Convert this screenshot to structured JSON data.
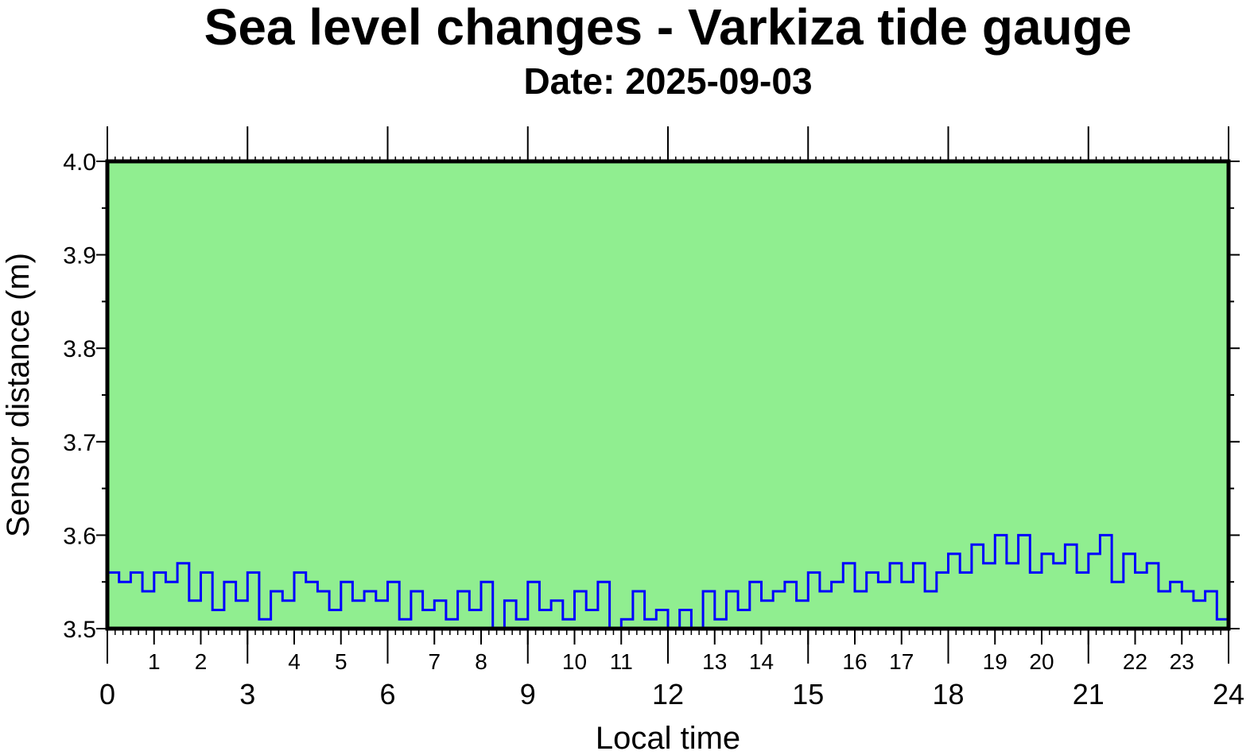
{
  "chart_data": {
    "type": "line",
    "title": "Sea level changes - Varkiza tide gauge",
    "subtitle": "Date: 2025-09-03",
    "xlabel": "Local time",
    "ylabel": "Sensor distance (m)",
    "xlim": [
      0,
      24
    ],
    "ylim": [
      3.5,
      4.0
    ],
    "y_ticks": [
      "3.5",
      "3.6",
      "3.7",
      "3.8",
      "3.9",
      "4.0"
    ],
    "x_major_ticks": [
      "0",
      "3",
      "6",
      "9",
      "12",
      "15",
      "18",
      "21",
      "24"
    ],
    "x_hour_ticks": [
      "1",
      "2",
      "4",
      "5",
      "7",
      "8",
      "10",
      "11",
      "13",
      "14",
      "16",
      "17",
      "19",
      "20",
      "22",
      "23"
    ],
    "background_color": "#90ee90",
    "line_color": "#0000ff",
    "series": [
      {
        "name": "Sensor distance",
        "x_step_hours": 0.25,
        "values": [
          3.56,
          3.55,
          3.56,
          3.54,
          3.56,
          3.55,
          3.57,
          3.53,
          3.56,
          3.52,
          3.55,
          3.53,
          3.56,
          3.51,
          3.54,
          3.53,
          3.56,
          3.55,
          3.54,
          3.52,
          3.55,
          3.53,
          3.54,
          3.53,
          3.55,
          3.51,
          3.54,
          3.52,
          3.53,
          3.51,
          3.54,
          3.52,
          3.55,
          3.5,
          3.53,
          3.51,
          3.55,
          3.52,
          3.53,
          3.51,
          3.54,
          3.52,
          3.55,
          3.5,
          3.51,
          3.54,
          3.51,
          3.52,
          3.5,
          3.52,
          3.5,
          3.54,
          3.51,
          3.54,
          3.52,
          3.55,
          3.53,
          3.54,
          3.55,
          3.53,
          3.56,
          3.54,
          3.55,
          3.57,
          3.54,
          3.56,
          3.55,
          3.57,
          3.55,
          3.57,
          3.54,
          3.56,
          3.58,
          3.56,
          3.59,
          3.57,
          3.6,
          3.57,
          3.6,
          3.56,
          3.58,
          3.57,
          3.59,
          3.56,
          3.58,
          3.6,
          3.55,
          3.58,
          3.56,
          3.57,
          3.54,
          3.55,
          3.54,
          3.53,
          3.54,
          3.51,
          3.54
        ]
      }
    ]
  }
}
